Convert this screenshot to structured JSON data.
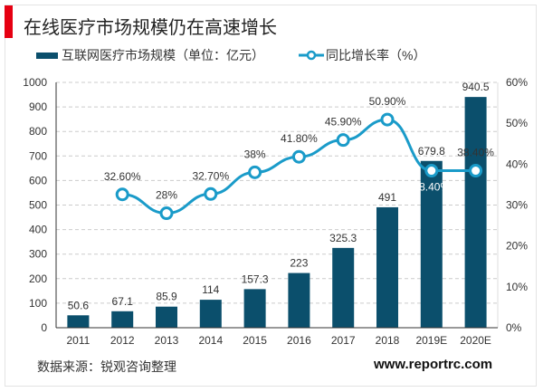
{
  "title": "在线医疗市场规模仍在高速增长",
  "footer": {
    "source": "数据来源：锐观咨询整理",
    "url": "www.reportrc.com"
  },
  "colors": {
    "bar": "#0b4f6c",
    "line": "#1a9bc9",
    "accent": "#e60012"
  },
  "chart_data": {
    "type": "bar+line",
    "categories": [
      "2011",
      "2012",
      "2013",
      "2014",
      "2015",
      "2016",
      "2017",
      "2018",
      "2019E",
      "2020E"
    ],
    "series": [
      {
        "name": "互联网医疗市场规模（单位：亿元）",
        "type": "bar",
        "axis": "left",
        "values": [
          50.6,
          67.1,
          85.9,
          114,
          157.3,
          223,
          325.3,
          491,
          679.8,
          940.5
        ],
        "labels": [
          "50.6",
          "67.1",
          "85.9",
          "114",
          "157.3",
          "223",
          "325.3",
          "491",
          "679.8",
          "940.5"
        ]
      },
      {
        "name": "同比增长率（%）",
        "type": "line",
        "axis": "right",
        "values": [
          null,
          32.6,
          28,
          32.7,
          38,
          41.8,
          45.9,
          50.9,
          38.4,
          38.4
        ],
        "labels": [
          "",
          "32.60%",
          "28%",
          "32.70%",
          "38%",
          "41.80%",
          "45.90%",
          "50.90%",
          "38.40%",
          "38.40%"
        ]
      }
    ],
    "left_axis": {
      "range": [
        0,
        1000
      ],
      "ticks": [
        "0",
        "100",
        "200",
        "300",
        "400",
        "500",
        "600",
        "700",
        "800",
        "900",
        "1000"
      ]
    },
    "right_axis": {
      "range": [
        0,
        60
      ],
      "ticks": [
        "0%",
        "10%",
        "20%",
        "30%",
        "40%",
        "50%",
        "60%"
      ]
    },
    "grid": true,
    "legend": "top"
  }
}
